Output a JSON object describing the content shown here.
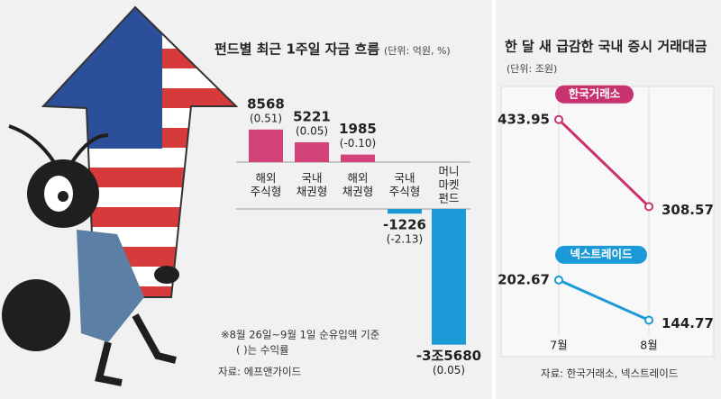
{
  "chart_data": [
    {
      "type": "bar",
      "title": "펀드별 최근 1주일 자금 흐름",
      "unit": "(단위: 억원, %)",
      "categories": [
        [
          "해외",
          "주식형"
        ],
        [
          "국내",
          "채권형"
        ],
        [
          "해외",
          "채권형"
        ],
        [
          "국내",
          "주식형"
        ],
        [
          "머니",
          "마켓",
          "펀드"
        ]
      ],
      "values": [
        8568,
        5221,
        1985,
        -1226,
        -35680
      ],
      "value_labels": [
        "8568",
        "5221",
        "1985",
        "-1226",
        "-3조5680"
      ],
      "returns": [
        "(0.51)",
        "(0.05)",
        "(-0.10)",
        "(-2.13)",
        "(0.05)"
      ],
      "color": "#d4427a",
      "negative_color": "#1c9ad8",
      "ylim": [
        -36000,
        9000
      ],
      "notes": [
        "※8월 26일~9월 1일 순유입액 기준",
        "( )는 수익률"
      ],
      "source": "자료: 에프앤가이드"
    },
    {
      "type": "line",
      "title": "한 달 새 급감한 국내 증시 거래대금",
      "unit": "(단위: 조원)",
      "categories": [
        "7월",
        "8월"
      ],
      "series": [
        {
          "name": "한국거래소",
          "color": "#c8336f",
          "values": [
            433.95,
            308.57
          ]
        },
        {
          "name": "넥스트레이드",
          "color": "#1c9ad8",
          "values": [
            202.67,
            144.77
          ]
        }
      ],
      "ylim": [
        100,
        470
      ],
      "source": "자료: 한국거래소, 넥스트레이드"
    }
  ]
}
